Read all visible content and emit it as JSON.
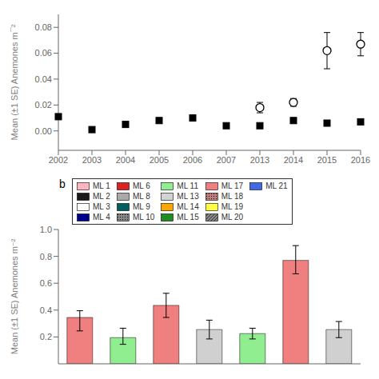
{
  "chart_data": [
    {
      "type": "scatter",
      "ylabel": "Mean (±1 SE) Anemones m¯²",
      "categories": [
        "2002",
        "2003",
        "2004",
        "2005",
        "2006",
        "2007",
        "2013",
        "2014",
        "2015",
        "2016"
      ],
      "series": [
        {
          "color": "#000000",
          "marker": "square",
          "values": [
            0.011,
            0.001,
            0.005,
            0.008,
            0.01,
            0.004,
            0.004,
            0.008,
            0.006,
            0.007
          ],
          "yerr": [
            0.002,
            0.0005,
            0.001,
            0.001,
            0.001,
            0.0005,
            0.001,
            0.001,
            0.001,
            0.001
          ]
        },
        {
          "color": "#000000",
          "marker": "circle_open",
          "values": [
            null,
            null,
            null,
            null,
            null,
            null,
            0.018,
            0.022,
            0.062,
            0.067
          ],
          "yerr": [
            null,
            null,
            null,
            null,
            null,
            null,
            0.004,
            0.003,
            0.014,
            0.009
          ]
        }
      ],
      "ylim": [
        -0.015,
        0.09
      ],
      "yticks": [
        {
          "value": 0,
          "label": "0.00"
        },
        {
          "value": 0.02,
          "label": "0.02"
        },
        {
          "value": 0.04,
          "label": "0.04"
        },
        {
          "value": 0.06,
          "label": "0.06"
        },
        {
          "value": 0.08,
          "label": "0.08"
        }
      ],
      "grid": false
    },
    {
      "type": "bar",
      "ylabel": "Mean (±1 SE) Anemones m⁻²",
      "categories": [
        null,
        null,
        null,
        null,
        null,
        null,
        null
      ],
      "values": [
        0.345,
        0.195,
        0.435,
        0.255,
        0.225,
        0.77,
        0.255
      ],
      "colors": [
        "#F08080",
        "#90EE90",
        "#F08080",
        "#d0d0d0",
        "#90EE90",
        "#F08080",
        "#d0d0d0"
      ],
      "yerr_lo": [
        0.1,
        0.05,
        0.09,
        0.07,
        0.04,
        0.1,
        0.06
      ],
      "yerr_hi": [
        0.05,
        0.07,
        0.09,
        0.07,
        0.04,
        0.11,
        0.06
      ],
      "ylim": [
        0.0,
        1.0
      ],
      "yticks": [
        0.2,
        0.4,
        0.6,
        0.8,
        {
          "value": 1.0,
          "label": "1.0"
        }
      ],
      "grid": false,
      "tick_labels": "y",
      "annotations": [
        "b"
      ],
      "legend": "upper left",
      "legend_columns": [
        [
          {
            "name": "ML 1",
            "color": "#FFB6C1"
          },
          {
            "name": "ML 2",
            "color": "#1a1a1a"
          },
          {
            "name": "ML 3",
            "color": "#ffffff"
          },
          {
            "name": "ML 4",
            "color": "#00008B"
          }
        ],
        [
          {
            "name": "ML 6",
            "color": "#DD2222"
          },
          {
            "name": "ML 8",
            "color": "#A9A9A9"
          },
          {
            "name": "ML 9",
            "color": "#006060"
          },
          {
            "name": "ML 10",
            "color": "#888888",
            "hatch": "dots"
          }
        ],
        [
          {
            "name": "ML 11",
            "color": "#90EE90"
          },
          {
            "name": "ML 13",
            "color": "#D3D3D3"
          },
          {
            "name": "ML 14",
            "color": "#FFA500"
          },
          {
            "name": "ML 15",
            "color": "#228B22"
          }
        ],
        [
          {
            "name": "ML 17",
            "color": "#F08080"
          },
          {
            "name": "ML 18",
            "color": "#C08080",
            "hatch": "dots"
          },
          {
            "name": "ML 19",
            "color": "#FFFF44"
          },
          {
            "name": "ML 20",
            "color": "#888888",
            "hatch": "diagonal"
          }
        ],
        [
          {
            "name": "ML 21",
            "color": "#4169E1"
          }
        ]
      ]
    }
  ]
}
